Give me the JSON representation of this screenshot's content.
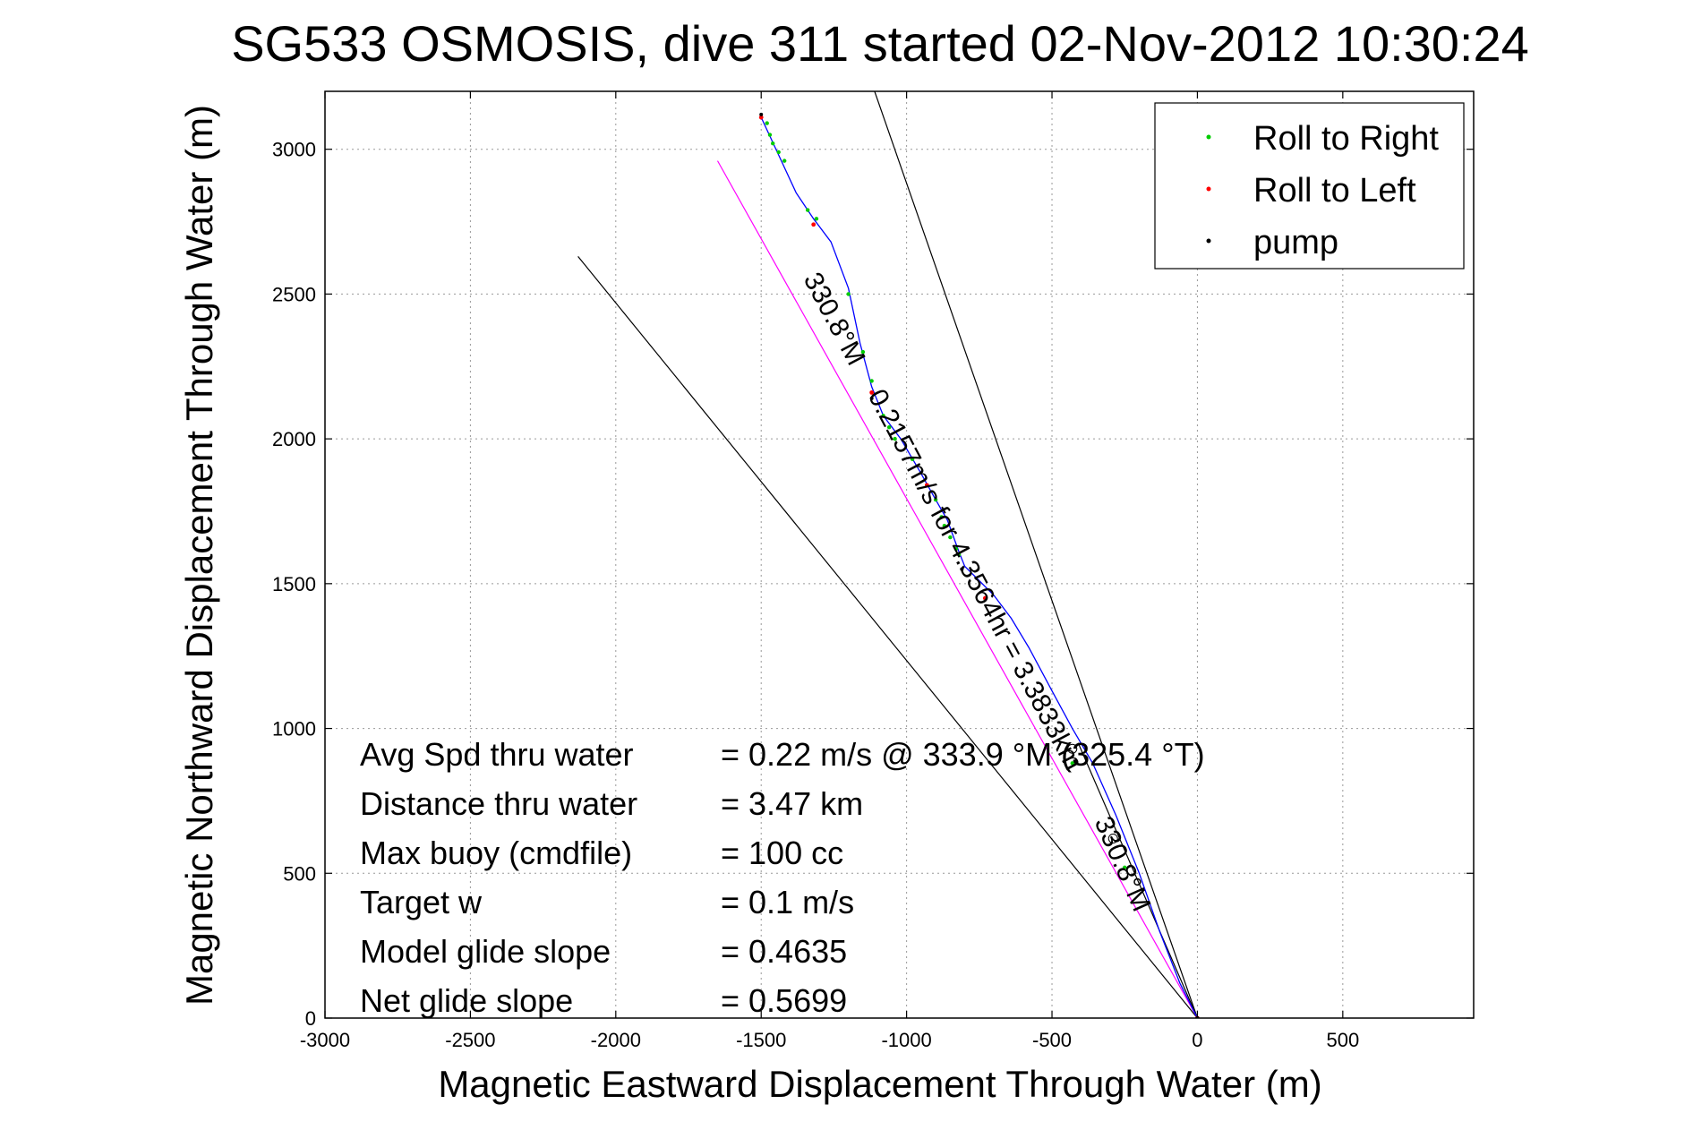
{
  "chart_data": {
    "type": "line",
    "title": "SG533 OSMOSIS, dive 311 started 02-Nov-2012 10:30:24",
    "xlabel": "Magnetic Eastward Displacement Through Water (m)",
    "ylabel": "Magnetic Northward Displacement Through Water (m)",
    "xlim": [
      -3000,
      950
    ],
    "ylim": [
      0,
      3200
    ],
    "xticks": [
      -3000,
      -2500,
      -2000,
      -1500,
      -1000,
      -500,
      0,
      500
    ],
    "yticks": [
      0,
      500,
      1000,
      1500,
      2000,
      2500,
      3000
    ],
    "grid": true,
    "legend_position": "top-right",
    "legend": [
      {
        "label": "Roll to Right",
        "color": "#00cc00"
      },
      {
        "label": "Roll to Left",
        "color": "#ff0000"
      },
      {
        "label": "pump",
        "color": "#000000"
      }
    ],
    "track": {
      "name": "track",
      "color": "#0000ff",
      "x": [
        0,
        -60,
        -130,
        -200,
        -280,
        -360,
        -430,
        -500,
        -580,
        -640,
        -700,
        -760,
        -800,
        -820,
        -860,
        -900,
        -950,
        -1020,
        -1080,
        -1120,
        -1160,
        -1200,
        -1260,
        -1320,
        -1380,
        -1440,
        -1500
      ],
      "y": [
        0,
        120,
        300,
        500,
        700,
        880,
        1000,
        1130,
        1280,
        1380,
        1460,
        1520,
        1560,
        1610,
        1720,
        1790,
        1880,
        2000,
        2080,
        2180,
        2330,
        2520,
        2680,
        2760,
        2850,
        2980,
        3110
      ]
    },
    "reference_lines": [
      {
        "name": "heading-line-1",
        "color": "#000000",
        "x": [
          0,
          -2130
        ],
        "y": [
          0,
          2630
        ]
      },
      {
        "name": "heading-line-2",
        "color": "#000000",
        "x": [
          0,
          -1110
        ],
        "y": [
          0,
          3200
        ]
      },
      {
        "name": "heading-line-3",
        "color": "#000000",
        "x": [
          0,
          -410
        ],
        "y": [
          0,
          950
        ]
      },
      {
        "name": "heading-line-4",
        "color": "#ff00ff",
        "x": [
          0,
          -1650
        ],
        "y": [
          0,
          2960
        ]
      }
    ],
    "roll_right_points": {
      "x": [
        -1480,
        -1470,
        -1460,
        -1440,
        -1420,
        -1340,
        -1310,
        -1200,
        -1150,
        -1120,
        -1080,
        -1060,
        -1040,
        -980,
        -900,
        -880,
        -870,
        -850,
        -830,
        -820,
        -430,
        -250
      ],
      "y": [
        3090,
        3050,
        3020,
        2990,
        2960,
        2790,
        2760,
        2500,
        2300,
        2200,
        2080,
        2040,
        2000,
        1930,
        1790,
        1730,
        1700,
        1660,
        1620,
        1600,
        880,
        520
      ]
    },
    "roll_left_points": {
      "x": [
        -1500,
        -1320,
        -1120,
        -930,
        -730,
        0
      ],
      "y": [
        3110,
        2740,
        2160,
        1840,
        1450,
        0
      ]
    },
    "pump_points": {
      "x": [
        -1500,
        -1120,
        -810,
        0
      ],
      "y": [
        3120,
        2140,
        1550,
        0
      ]
    },
    "inline_labels": [
      {
        "text": "330.8°M",
        "x": -1275,
        "y": 2400,
        "angle": 62
      },
      {
        "text": "0.2157m/s for 4.3564hr = 3.3833km",
        "x": -790,
        "y": 1500,
        "angle": 62
      },
      {
        "text": "330.8°M",
        "x": -285,
        "y": 520,
        "angle": 66
      }
    ],
    "annotations": [
      {
        "label": "Avg Spd thru water",
        "value": "=  0.22 m/s @ 333.9 °M (325.4 °T)"
      },
      {
        "label": "Distance thru water",
        "value": "=  3.47 km"
      },
      {
        "label": "Max buoy (cmdfile)",
        "value": "= 100 cc"
      },
      {
        "label": "Target w",
        "value": "= 0.1 m/s"
      },
      {
        "label": "Model glide slope",
        "value": "= 0.4635"
      },
      {
        "label": "Net glide slope",
        "value": "= 0.5699"
      }
    ]
  }
}
